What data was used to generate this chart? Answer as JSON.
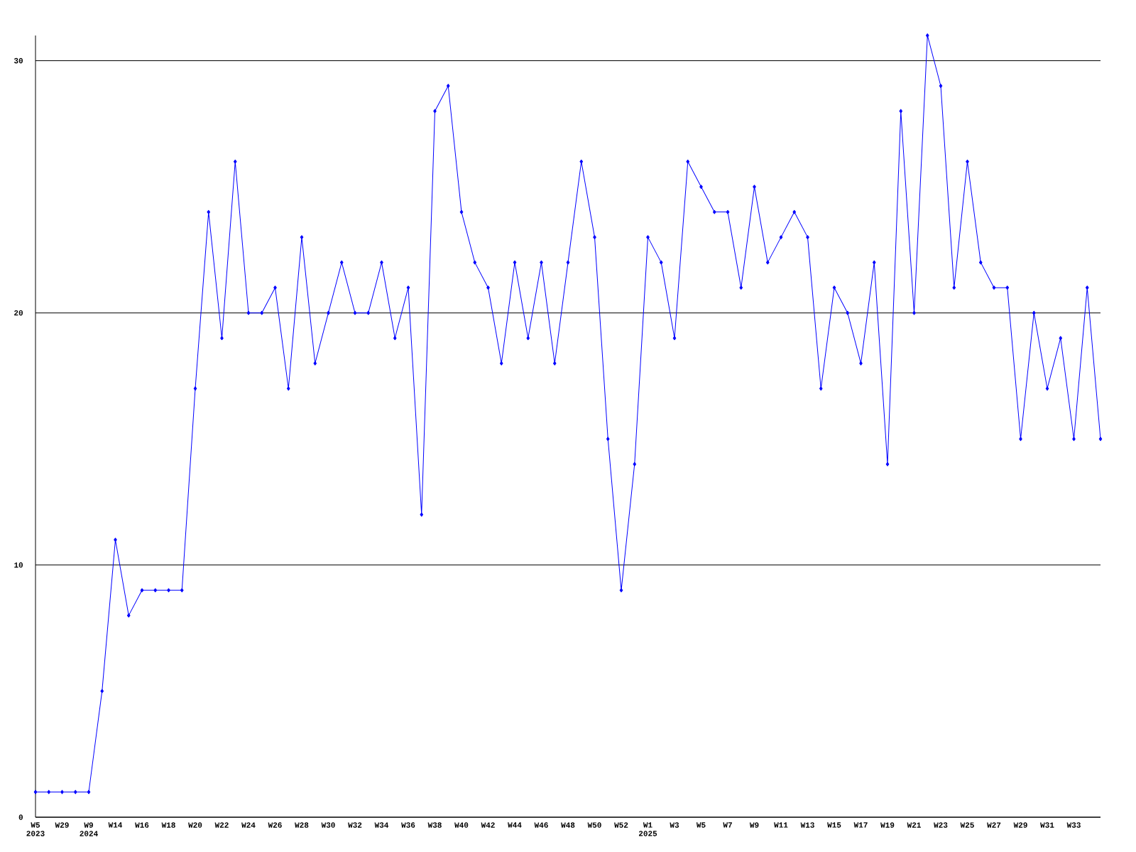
{
  "chart_data": {
    "type": "line",
    "categories": [
      "W5 2023",
      null,
      "W29",
      null,
      "W9 2024",
      null,
      "W14",
      null,
      "W16",
      null,
      "W18",
      null,
      "W20",
      null,
      "W22",
      null,
      "W24",
      null,
      "W26",
      null,
      "W28",
      null,
      "W30",
      null,
      "W32",
      null,
      "W34",
      null,
      "W36",
      null,
      "W38",
      null,
      "W40",
      null,
      "W42",
      null,
      "W44",
      null,
      "W46",
      null,
      "W48",
      null,
      "W50",
      null,
      "W52",
      null,
      "W1 2025",
      null,
      "W3",
      null,
      "W5",
      null,
      "W7",
      null,
      "W9",
      null,
      "W11",
      null,
      "W13",
      null,
      "W15",
      null,
      "W17",
      null,
      "W19",
      null,
      "W21",
      null,
      "W23",
      null,
      "W25",
      null,
      "W27",
      null,
      "W29",
      null,
      "W31",
      null,
      "W33",
      null,
      null
    ],
    "values": [
      1,
      1,
      1,
      1,
      1,
      5,
      11,
      8,
      9,
      9,
      9,
      9,
      17,
      24,
      19,
      26,
      20,
      20,
      21,
      17,
      23,
      18,
      20,
      22,
      20,
      20,
      22,
      19,
      21,
      12,
      28,
      29,
      24,
      22,
      21,
      18,
      22,
      19,
      22,
      18,
      22,
      26,
      23,
      15,
      9,
      14,
      23,
      22,
      19,
      26,
      25,
      24,
      24,
      21,
      25,
      22,
      23,
      24,
      23,
      17,
      21,
      20,
      18,
      22,
      14,
      28,
      20,
      31,
      29,
      21,
      26,
      22,
      21,
      21,
      15,
      20,
      17,
      19,
      15,
      21,
      15
    ],
    "color": "#0000ff",
    "marker": "diamond",
    "grid": "y",
    "ylim": [
      0,
      31
    ],
    "yticks": [
      0,
      10,
      20,
      30
    ]
  }
}
